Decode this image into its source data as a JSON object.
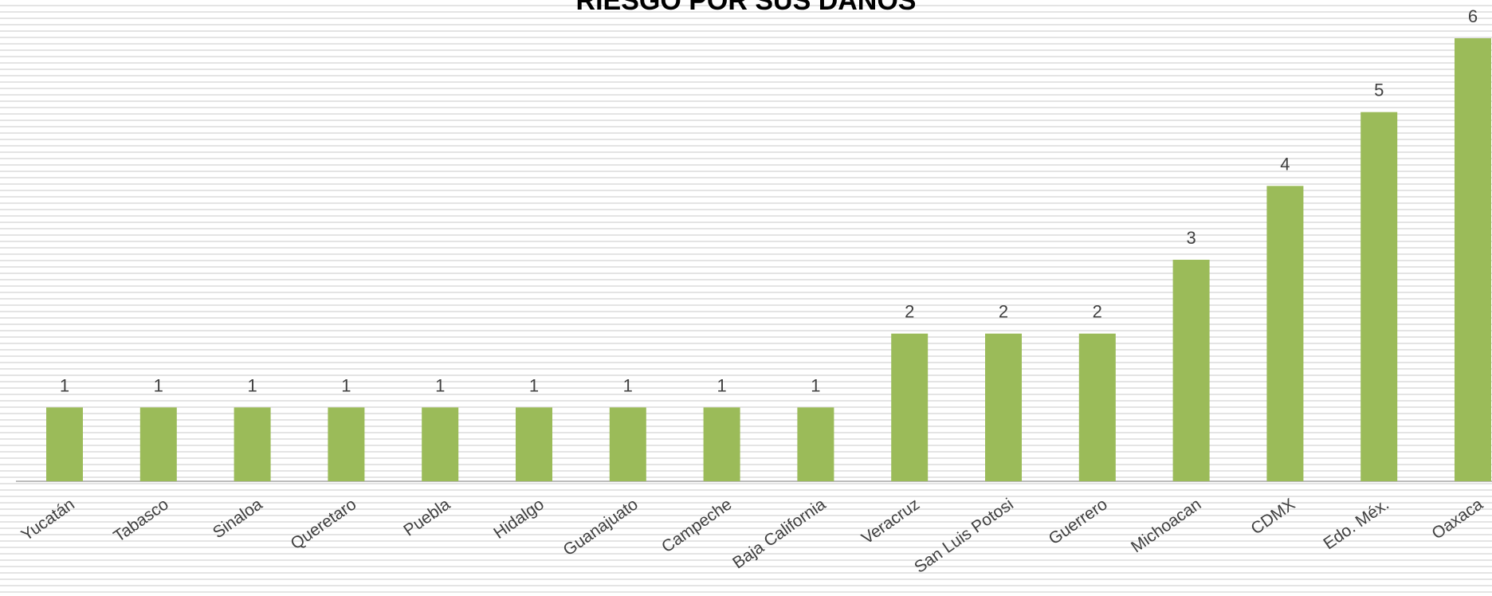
{
  "chart_data": {
    "type": "bar",
    "title": "RIESGO POR SUS DAÑOS",
    "xlabel": "",
    "ylabel": "",
    "categories": [
      "Yucatán",
      "Tabasco",
      "Sinaloa",
      "Queretaro",
      "Puebla",
      "Hidalgo",
      "Guanajuato",
      "Campeche",
      "Baja California",
      "Veracruz",
      "San Luis Potosi",
      "Guerrero",
      "Michoacan",
      "CDMX",
      "Edo. Méx.",
      "Oaxaca"
    ],
    "values": [
      1,
      1,
      1,
      1,
      1,
      1,
      1,
      1,
      1,
      2,
      2,
      2,
      3,
      4,
      5,
      6
    ],
    "ylim": [
      0,
      6
    ],
    "grid": false,
    "data_labels": true,
    "bar_color": "#9bbb59",
    "axis_color": "#a6a6a6",
    "label_color": "#404040"
  }
}
